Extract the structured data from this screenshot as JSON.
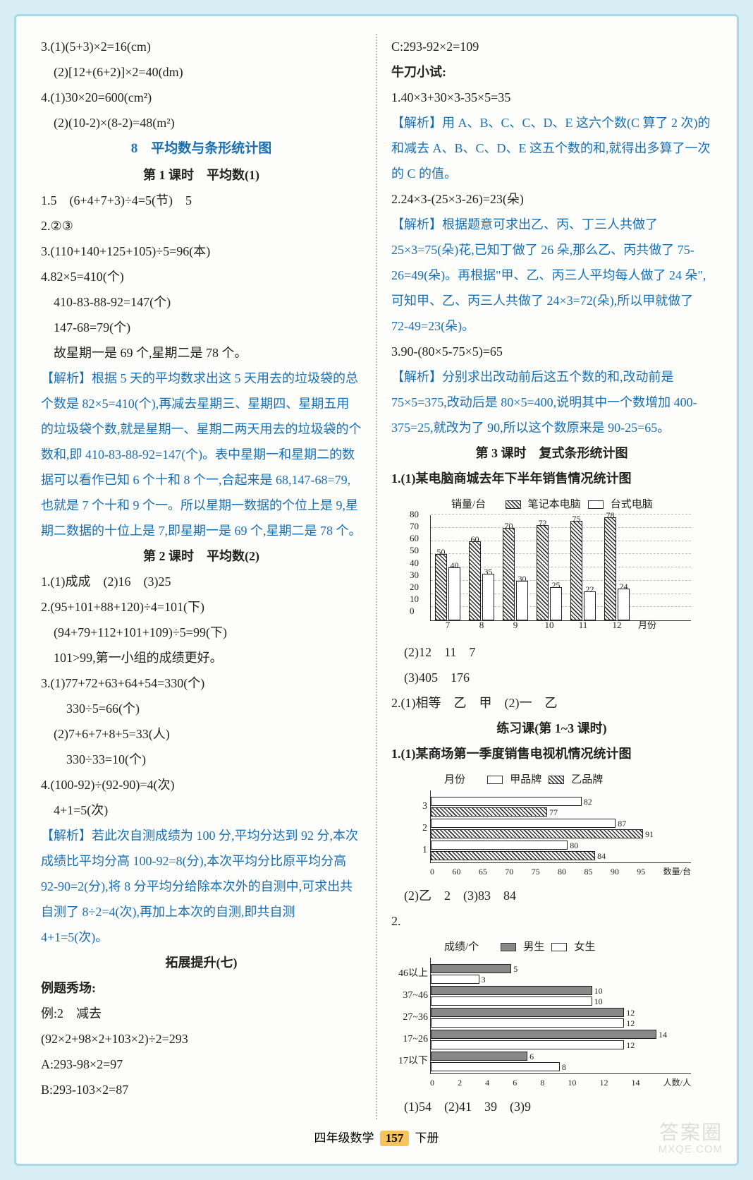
{
  "left": {
    "l1": "3.(1)(5+3)×2=16(cm)",
    "l2": "　(2)[12+(6+2)]×2=40(dm)",
    "l3": "4.(1)30×20=600(cm²)",
    "l4": "　(2)(10-2)×(8-2)=48(m²)",
    "title8": "8　平均数与条形统计图",
    "lesson1": "第 1 课时　平均数(1)",
    "l5": "1.5　(6+4+7+3)÷4=5(节)　5",
    "l6": "2.②③",
    "l7": "3.(110+140+125+105)÷5=96(本)",
    "l8": "4.82×5=410(个)",
    "l9": "　410-83-88-92=147(个)",
    "l10": "　147-68=79(个)",
    "l11": "　故星期一是 69 个,星期二是 78 个。",
    "exp1": "【解析】根据 5 天的平均数求出这 5 天用去的垃圾袋的总个数是 82×5=410(个),再减去星期三、星期四、星期五用的垃圾袋个数,就是星期一、星期二两天用去的垃圾袋的个数和,即 410-83-88-92=147(个)。表中星期一和星期二的数据可以看作已知 6 个十和 8 个一,合起来是 68,147-68=79,也就是 7 个十和 9 个一。所以星期一数据的个位上是 9,星期二数据的十位上是 7,即星期一是 69 个,星期二是 78 个。",
    "lesson2": "第 2 课时　平均数(2)",
    "l12": "1.(1)成成　(2)16　(3)25",
    "l13": "2.(95+101+88+120)÷4=101(下)",
    "l14": "　(94+79+112+101+109)÷5=99(下)",
    "l15": "　101>99,第一小组的成绩更好。",
    "l16": "3.(1)77+72+63+64+54=330(个)",
    "l17": "　　330÷5=66(个)",
    "l18": "　(2)7+6+7+8+5=33(人)",
    "l19": "　　330÷33=10(个)",
    "l20": "4.(100-92)÷(92-90)=4(次)",
    "l21": "　4+1=5(次)",
    "exp2": "【解析】若此次自测成绩为 100 分,平均分达到 92 分,本次成绩比平均分高 100-92=8(分),本次平均分比原平均分高 92-90=2(分),将 8 分平均分给除本次外的自测中,可求出共自测了 8÷2=4(次),再加上本次的自测,即共自测 4+1=5(次)。",
    "ext7": "拓展提升(七)",
    "show": "例题秀场:",
    "l22": "例:2　减去",
    "l23": "(92×2+98×2+103×2)÷2=293",
    "l24": "A:293-98×2=97",
    "l25": "B:293-103×2=87"
  },
  "right": {
    "r1": "C:293-92×2=109",
    "r2": "牛刀小试:",
    "r3": "1.40×3+30×3-35×5=35",
    "rexp1": "【解析】用 A、B、C、C、D、E 这六个数(C 算了 2 次)的和减去 A、B、C、D、E 这五个数的和,就得出多算了一次的 C 的值。",
    "r4": "2.24×3-(25×3-26)=23(朵)",
    "rexp2": "【解析】根据题意可求出乙、丙、丁三人共做了 25×3=75(朵)花,已知丁做了 26 朵,那么乙、丙共做了 75-26=49(朵)。再根据\"甲、乙、丙三人平均每人做了 24 朵\",可知甲、乙、丙三人共做了 24×3=72(朵),所以甲就做了 72-49=23(朵)。",
    "r5": "3.90-(80×5-75×5)=65",
    "rexp3": "【解析】分别求出改动前后这五个数的和,改动前是 75×5=375,改动后是 80×5=400,说明其中一个数增加 400-375=25,就改为了 90,所以这个数原来是 90-25=65。",
    "lesson3": "第 3 课时　复式条形统计图",
    "r6": "1.(1)某电脑商城去年下半年销售情况统计图",
    "chart1": {
      "ylabel": "销量/台",
      "xlabel": "月份",
      "legend": [
        "笔记本电脑",
        "台式电脑"
      ],
      "ymax": 80,
      "ystep": 10,
      "categories": [
        "7",
        "8",
        "9",
        "10",
        "11",
        "12"
      ],
      "series1": [
        50,
        60,
        70,
        72,
        75,
        78
      ],
      "series2": [
        40,
        35,
        30,
        25,
        22,
        24
      ]
    },
    "r7": "　(2)12　11　7",
    "r8": "　(3)405　176",
    "r9": "2.(1)相等　乙　甲　(2)一　乙",
    "practice": "练习课(第 1~3 课时)",
    "r10": "1.(1)某商场第一季度销售电视机情况统计图",
    "chart2": {
      "ylabel": "月份",
      "xlabel": "数量/台",
      "legend": [
        "甲品牌",
        "乙品牌"
      ],
      "xmin": 60,
      "xmax": 95,
      "xstep": 5,
      "xstart_label": "0",
      "categories": [
        "3",
        "2",
        "1"
      ],
      "series1": [
        82,
        87,
        80
      ],
      "series2": [
        77,
        91,
        84
      ]
    },
    "r11": "　(2)乙　2　(3)83　84",
    "r12": "2.",
    "chart3": {
      "ylabel": "成绩/个",
      "xlabel": "人数/人",
      "legend": [
        "男生",
        "女生"
      ],
      "xmin": 0,
      "xmax": 14,
      "xstep": 2,
      "categories": [
        "46以上",
        "37~46",
        "27~36",
        "17~26",
        "17以下"
      ],
      "series1": [
        5,
        10,
        12,
        14,
        6
      ],
      "series2": [
        3,
        10,
        12,
        12,
        8
      ]
    },
    "r13": "　(1)54　(2)41　39　(3)9"
  },
  "footer": {
    "left": "四年级数学",
    "page": "157",
    "right": "下册"
  },
  "watermark": {
    "big": "答案圈",
    "small": "MXQE.COM"
  },
  "colors": {
    "explain": "#1a6fb0",
    "page_bg": "#fdfdfb",
    "outer_bg": "#d8eef5",
    "footer_badge": "#f6c45a"
  }
}
